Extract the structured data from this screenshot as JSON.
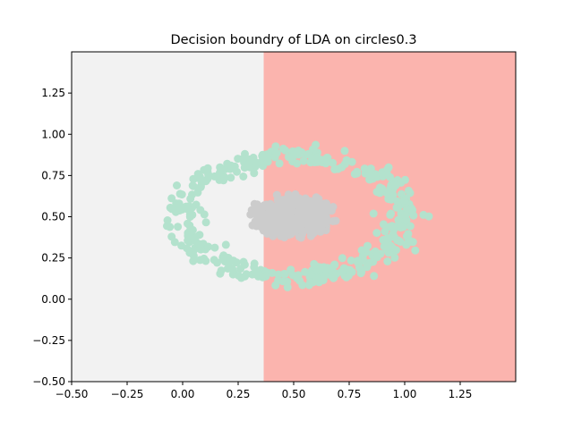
{
  "chart_data": {
    "type": "scatter",
    "title": "Decision boundry of LDA on circles0.3",
    "xlabel": "",
    "ylabel": "",
    "xlim": [
      -0.5,
      1.5
    ],
    "ylim": [
      -0.5,
      1.5
    ],
    "xticks": [
      -0.5,
      -0.25,
      0.0,
      0.25,
      0.5,
      0.75,
      1.0,
      1.25
    ],
    "xtick_labels": [
      "−0.50",
      "−0.25",
      "0.00",
      "0.25",
      "0.50",
      "0.75",
      "1.00",
      "1.25"
    ],
    "yticks": [
      -0.5,
      -0.25,
      0.0,
      0.25,
      0.5,
      0.75,
      1.0,
      1.25
    ],
    "ytick_labels": [
      "−0.50",
      "−0.25",
      "0.00",
      "0.25",
      "0.50",
      "0.75",
      "1.00",
      "1.25"
    ],
    "grid": false,
    "decision_boundary_x": 0.365,
    "regions": [
      {
        "side": "left",
        "color": "#f2f2f2"
      },
      {
        "side": "right",
        "color": "#fbb4ae"
      }
    ],
    "series": [
      {
        "color": "#b3e2cd",
        "shape": "ring",
        "center": [
          0.5,
          0.5
        ],
        "radius": 0.5,
        "noise": 0.04,
        "count": 420
      },
      {
        "color": "#cccccc",
        "shape": "blob",
        "center": [
          0.5,
          0.5
        ],
        "radius": 0.18,
        "noise": 0.02,
        "count": 420
      }
    ]
  }
}
